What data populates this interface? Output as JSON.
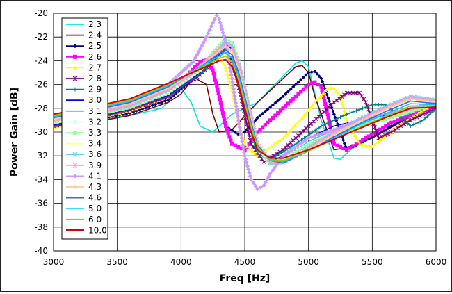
{
  "chart_data": {
    "type": "line",
    "title": "",
    "xlabel": "Freq [Hz]",
    "ylabel": "Power Gain [dB]",
    "xlim": [
      3000,
      6000
    ],
    "ylim": [
      -40,
      -20
    ],
    "x_ticks": [
      3000,
      3500,
      4000,
      4500,
      5000,
      5500,
      6000
    ],
    "y_ticks": [
      -20,
      -22,
      -24,
      -26,
      -28,
      -30,
      -32,
      -34,
      -36,
      -38,
      -40
    ],
    "grid": true,
    "legend_position": "top-left",
    "series": [
      {
        "name": "2.3",
        "color": "#00e5e5",
        "marker": "none",
        "x": [
          3000,
          3300,
          3600,
          3850,
          4000,
          4080,
          4150,
          4250,
          4400,
          4600,
          4900,
          4950,
          5000,
          5100,
          5200,
          5250,
          5400,
          5600,
          5800,
          6000
        ],
        "values": [
          -29.5,
          -29.0,
          -28.6,
          -28.0,
          -26.3,
          -27.5,
          -29.5,
          -30.0,
          -28.5,
          -27.5,
          -24.2,
          -24.0,
          -24.5,
          -29.0,
          -32.2,
          -32.3,
          -30.8,
          -29.5,
          -28.4,
          -27.5
        ]
      },
      {
        "name": "2.4",
        "color": "#800000",
        "marker": "none",
        "x": [
          3000,
          3300,
          3600,
          3900,
          4000,
          4100,
          4200,
          4250,
          4300,
          4400,
          4600,
          4800,
          4900,
          4950,
          5000,
          5050,
          5200,
          5300,
          5500,
          5700,
          6000
        ],
        "values": [
          -29.6,
          -29.2,
          -28.6,
          -27.5,
          -26.8,
          -25.4,
          -26.0,
          -28.5,
          -30.0,
          -29.8,
          -27.5,
          -25.5,
          -24.5,
          -24.4,
          -25.0,
          -27.0,
          -31.5,
          -31.3,
          -30.5,
          -29.3,
          -27.5
        ]
      },
      {
        "name": "2.5",
        "color": "#000080",
        "marker": "diamond",
        "x": [
          3000,
          3300,
          3600,
          3900,
          4100,
          4200,
          4250,
          4300,
          4350,
          4450,
          4500,
          4600,
          4800,
          5000,
          5050,
          5100,
          5200,
          5300,
          5400,
          5600,
          5800,
          6000
        ],
        "values": [
          -29.5,
          -29.0,
          -28.4,
          -27.3,
          -25.5,
          -24.2,
          -24.8,
          -27.0,
          -29.5,
          -30.2,
          -30.0,
          -28.8,
          -27.0,
          -25.0,
          -24.9,
          -25.5,
          -28.5,
          -31.5,
          -31.0,
          -29.8,
          -28.6,
          -27.5
        ]
      },
      {
        "name": "2.6",
        "color": "#ff00ff",
        "marker": "square",
        "x": [
          3000,
          3300,
          3600,
          3900,
          4050,
          4150,
          4200,
          4250,
          4300,
          4350,
          4400,
          4500,
          4600,
          4800,
          5000,
          5050,
          5100,
          5150,
          5200,
          5300,
          5450,
          5650,
          6000
        ],
        "values": [
          -29.5,
          -28.8,
          -28.2,
          -27.0,
          -25.2,
          -24.1,
          -23.9,
          -24.8,
          -27.0,
          -29.5,
          -31.0,
          -31.5,
          -30.0,
          -28.0,
          -26.0,
          -25.8,
          -26.2,
          -28.5,
          -31.0,
          -31.5,
          -30.5,
          -29.2,
          -27.8
        ]
      },
      {
        "name": "2.7",
        "color": "#ffff00",
        "marker": "triangle",
        "x": [
          3000,
          3300,
          3600,
          3900,
          4100,
          4250,
          4300,
          4350,
          4400,
          4450,
          4500,
          4600,
          4800,
          4950,
          5050,
          5150,
          5200,
          5250,
          5300,
          5400,
          5500,
          5700,
          6000
        ],
        "values": [
          -29.6,
          -28.9,
          -28.2,
          -27.0,
          -25.4,
          -24.0,
          -23.7,
          -24.5,
          -26.5,
          -29.0,
          -31.0,
          -32.0,
          -30.5,
          -28.8,
          -27.5,
          -26.3,
          -26.3,
          -27.0,
          -29.0,
          -31.0,
          -31.2,
          -29.5,
          -27.5
        ]
      },
      {
        "name": "2.8",
        "color": "#800080",
        "marker": "star",
        "x": [
          3000,
          3300,
          3600,
          3900,
          4150,
          4300,
          4350,
          4400,
          4450,
          4500,
          4550,
          4650,
          4800,
          5000,
          5200,
          5300,
          5400,
          5450,
          5500,
          5550,
          5650,
          5800,
          6000
        ],
        "values": [
          -29.5,
          -28.9,
          -28.1,
          -27.0,
          -25.2,
          -23.5,
          -23.0,
          -24.0,
          -26.0,
          -28.5,
          -31.0,
          -32.5,
          -31.5,
          -29.5,
          -27.5,
          -26.7,
          -26.7,
          -27.5,
          -29.0,
          -30.5,
          -30.0,
          -29.0,
          -28.0
        ]
      },
      {
        "name": "2.9",
        "color": "#008080",
        "marker": "plus",
        "x": [
          3000,
          3300,
          3600,
          3900,
          4150,
          4300,
          4350,
          4400,
          4450,
          4500,
          4550,
          4600,
          4700,
          4900,
          5100,
          5300,
          5500,
          5600,
          5700,
          5800,
          5900,
          6000
        ],
        "values": [
          -29.4,
          -28.8,
          -28.0,
          -26.9,
          -25.1,
          -23.3,
          -22.8,
          -23.2,
          -25.0,
          -27.5,
          -30.0,
          -31.8,
          -32.3,
          -31.0,
          -29.5,
          -28.5,
          -27.7,
          -27.7,
          -28.5,
          -29.5,
          -29.0,
          -28.0
        ]
      },
      {
        "name": "3.0",
        "color": "#0000ff",
        "marker": "none",
        "x": [
          3000,
          3300,
          3600,
          3900,
          4150,
          4300,
          4350,
          4400,
          4450,
          4500,
          4550,
          4600,
          4700,
          4800,
          5000,
          5200,
          5400,
          5600,
          6000
        ],
        "values": [
          -29.4,
          -28.8,
          -28.0,
          -26.9,
          -25.0,
          -23.0,
          -22.6,
          -23.0,
          -24.5,
          -27.0,
          -29.5,
          -31.5,
          -32.5,
          -32.0,
          -30.5,
          -29.5,
          -29.0,
          -28.6,
          -27.5
        ]
      },
      {
        "name": "3.1",
        "color": "#33cccc",
        "marker": "none",
        "x": [
          3000,
          3300,
          3600,
          3900,
          4150,
          4300,
          4350,
          4400,
          4450,
          4500,
          4550,
          4600,
          4700,
          4800,
          5000,
          5200,
          5400,
          5600,
          6000
        ],
        "values": [
          -29.3,
          -28.7,
          -28.0,
          -26.8,
          -24.9,
          -22.9,
          -22.4,
          -22.8,
          -24.3,
          -26.8,
          -29.3,
          -31.4,
          -32.6,
          -32.2,
          -30.8,
          -29.8,
          -29.2,
          -28.7,
          -27.6
        ]
      },
      {
        "name": "3.2",
        "color": "#ccffff",
        "marker": "circle",
        "x": [
          3000,
          3300,
          3600,
          3900,
          4150,
          4300,
          4350,
          4400,
          4450,
          4500,
          4550,
          4600,
          4700,
          4800,
          5000,
          5200,
          5400,
          5600,
          6000
        ],
        "values": [
          -29.2,
          -28.6,
          -27.9,
          -26.7,
          -24.8,
          -22.8,
          -22.3,
          -22.6,
          -24.1,
          -26.5,
          -29.0,
          -31.2,
          -32.6,
          -32.3,
          -31.0,
          -30.0,
          -29.3,
          -28.8,
          -27.6
        ]
      },
      {
        "name": "3.3",
        "color": "#99ff99",
        "marker": "square",
        "x": [
          3000,
          3300,
          3600,
          3900,
          4150,
          4300,
          4350,
          4400,
          4450,
          4500,
          4550,
          4600,
          4700,
          4800,
          5000,
          5200,
          5400,
          5600,
          6000
        ],
        "values": [
          -29.2,
          -28.6,
          -27.9,
          -26.7,
          -24.7,
          -22.7,
          -22.2,
          -22.5,
          -24.0,
          -26.4,
          -28.9,
          -31.1,
          -32.7,
          -32.4,
          -31.1,
          -30.1,
          -29.4,
          -28.9,
          -27.6
        ]
      },
      {
        "name": "3.4",
        "color": "#ffff99",
        "marker": "triangle",
        "x": [
          3000,
          3300,
          3600,
          3900,
          4150,
          4300,
          4350,
          4400,
          4450,
          4500,
          4550,
          4600,
          4700,
          4800,
          5000,
          5200,
          5400,
          5600,
          5800,
          6000
        ],
        "values": [
          -29.1,
          -28.5,
          -27.8,
          -26.6,
          -24.7,
          -22.8,
          -22.3,
          -22.6,
          -24.0,
          -26.3,
          -28.8,
          -31.0,
          -32.7,
          -32.5,
          -31.2,
          -30.0,
          -29.0,
          -28.0,
          -27.0,
          -27.2
        ]
      },
      {
        "name": "3.6",
        "color": "#66ccff",
        "marker": "star",
        "x": [
          3000,
          3300,
          3600,
          3900,
          4150,
          4300,
          4350,
          4400,
          4450,
          4500,
          4550,
          4600,
          4700,
          4800,
          5000,
          5200,
          5400,
          5600,
          5800,
          6000
        ],
        "values": [
          -29.0,
          -28.5,
          -27.8,
          -26.5,
          -24.6,
          -22.9,
          -22.4,
          -22.7,
          -24.1,
          -26.3,
          -28.7,
          -30.9,
          -32.6,
          -32.6,
          -31.3,
          -30.0,
          -28.9,
          -27.9,
          -27.0,
          -27.3
        ]
      },
      {
        "name": "3.9",
        "color": "#ff99cc",
        "marker": "star",
        "x": [
          3000,
          3300,
          3600,
          3900,
          4150,
          4300,
          4350,
          4400,
          4450,
          4500,
          4550,
          4600,
          4700,
          4800,
          5000,
          5200,
          5400,
          5600,
          5800,
          6000
        ],
        "values": [
          -29.0,
          -28.4,
          -27.7,
          -26.4,
          -24.5,
          -23.0,
          -22.5,
          -22.9,
          -24.3,
          -26.5,
          -28.8,
          -30.9,
          -32.5,
          -32.6,
          -31.4,
          -30.1,
          -29.0,
          -28.0,
          -27.1,
          -27.4
        ]
      },
      {
        "name": "4.1",
        "color": "#cc99ff",
        "marker": "diamond",
        "x": [
          3000,
          3300,
          3600,
          3900,
          4100,
          4200,
          4250,
          4280,
          4300,
          4350,
          4400,
          4450,
          4500,
          4550,
          4600,
          4650,
          4700,
          4800,
          5000,
          5200,
          5400,
          5600,
          5800,
          6000
        ],
        "values": [
          -28.8,
          -28.3,
          -27.5,
          -26.0,
          -24.0,
          -22.0,
          -20.8,
          -20.2,
          -20.5,
          -22.5,
          -25.5,
          -29.0,
          -32.0,
          -34.0,
          -34.8,
          -34.5,
          -33.5,
          -32.0,
          -30.5,
          -29.8,
          -29.0,
          -28.5,
          -28.0,
          -27.5
        ]
      },
      {
        "name": "4.3",
        "color": "#ffcc99",
        "marker": "plus",
        "x": [
          3000,
          3300,
          3600,
          3900,
          4150,
          4300,
          4350,
          4400,
          4450,
          4500,
          4550,
          4600,
          4700,
          4800,
          5000,
          5200,
          5400,
          5600,
          5800,
          6000
        ],
        "values": [
          -28.9,
          -28.3,
          -27.6,
          -26.3,
          -24.5,
          -23.2,
          -22.8,
          -23.2,
          -24.6,
          -26.7,
          -29.0,
          -31.0,
          -32.4,
          -32.6,
          -31.5,
          -30.2,
          -29.1,
          -28.1,
          -27.2,
          -27.5
        ]
      },
      {
        "name": "4.6",
        "color": "#3366ff",
        "marker": "none",
        "x": [
          3000,
          3300,
          3600,
          3900,
          4150,
          4300,
          4350,
          4400,
          4450,
          4500,
          4550,
          4600,
          4700,
          4800,
          5000,
          5200,
          5400,
          5600,
          5800,
          6000
        ],
        "values": [
          -28.8,
          -28.2,
          -27.5,
          -26.2,
          -24.5,
          -23.4,
          -23.1,
          -23.5,
          -24.9,
          -27.0,
          -29.2,
          -31.1,
          -32.4,
          -32.6,
          -31.6,
          -30.4,
          -29.3,
          -28.3,
          -27.4,
          -27.6
        ]
      },
      {
        "name": "5.0",
        "color": "#00ccff",
        "marker": "none",
        "x": [
          3000,
          3300,
          3600,
          3900,
          4150,
          4300,
          4350,
          4400,
          4450,
          4500,
          4550,
          4600,
          4700,
          4800,
          5000,
          5200,
          5400,
          5600,
          5800,
          6000
        ],
        "values": [
          -28.7,
          -28.1,
          -27.4,
          -26.1,
          -24.5,
          -23.6,
          -23.3,
          -23.8,
          -25.2,
          -27.3,
          -29.4,
          -31.2,
          -32.4,
          -32.5,
          -31.6,
          -30.5,
          -29.4,
          -28.5,
          -27.6,
          -27.7
        ]
      },
      {
        "name": "6.0",
        "color": "#99cc00",
        "marker": "none",
        "x": [
          3000,
          3300,
          3600,
          3900,
          4150,
          4300,
          4350,
          4400,
          4450,
          4500,
          4550,
          4600,
          4700,
          4800,
          5000,
          5200,
          5400,
          5600,
          5800,
          6000
        ],
        "values": [
          -28.6,
          -28.0,
          -27.3,
          -26.0,
          -24.6,
          -23.8,
          -23.6,
          -24.1,
          -25.5,
          -27.6,
          -29.6,
          -31.3,
          -32.3,
          -32.4,
          -31.6,
          -30.6,
          -29.6,
          -28.7,
          -27.8,
          -27.8
        ]
      },
      {
        "name": "10.0",
        "color": "#dd0000",
        "marker": "none",
        "x": [
          3000,
          3300,
          3600,
          3900,
          4150,
          4300,
          4350,
          4400,
          4450,
          4500,
          4550,
          4600,
          4700,
          4800,
          5000,
          5200,
          5400,
          5600,
          5800,
          6000
        ],
        "values": [
          -28.5,
          -27.9,
          -27.2,
          -25.9,
          -24.7,
          -24.0,
          -23.9,
          -24.5,
          -26.0,
          -28.0,
          -30.0,
          -31.5,
          -32.2,
          -32.2,
          -31.5,
          -30.6,
          -29.7,
          -28.8,
          -28.0,
          -27.9
        ]
      }
    ]
  }
}
